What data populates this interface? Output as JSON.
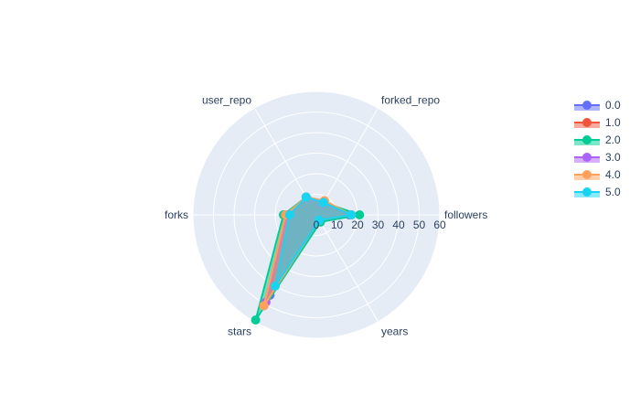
{
  "chart_data": {
    "type": "radar",
    "categories": [
      "followers",
      "years",
      "stars",
      "forks",
      "user_repo",
      "forked_repo"
    ],
    "radial_range": [
      0,
      60
    ],
    "radial_ticks": [
      0,
      10,
      20,
      30,
      40,
      50,
      60
    ],
    "grid": true,
    "legend_position": "top-right",
    "series": [
      {
        "name": "0.0",
        "color": "#636efa",
        "values": [
          16,
          3,
          45,
          15,
          9,
          6
        ]
      },
      {
        "name": "1.0",
        "color": "#EF553B",
        "values": [
          17,
          3,
          51,
          15,
          9,
          7
        ]
      },
      {
        "name": "2.0",
        "color": "#00cc96",
        "values": [
          21,
          4,
          59,
          16,
          10,
          7
        ]
      },
      {
        "name": "3.0",
        "color": "#ab63fa",
        "values": [
          17,
          3,
          49,
          14,
          9,
          6
        ]
      },
      {
        "name": "4.0",
        "color": "#FFA15A",
        "values": [
          17,
          3,
          51,
          15,
          10,
          8
        ]
      },
      {
        "name": "5.0",
        "color": "#19d3f3",
        "values": [
          17,
          3,
          40,
          13,
          10,
          7
        ]
      }
    ]
  }
}
